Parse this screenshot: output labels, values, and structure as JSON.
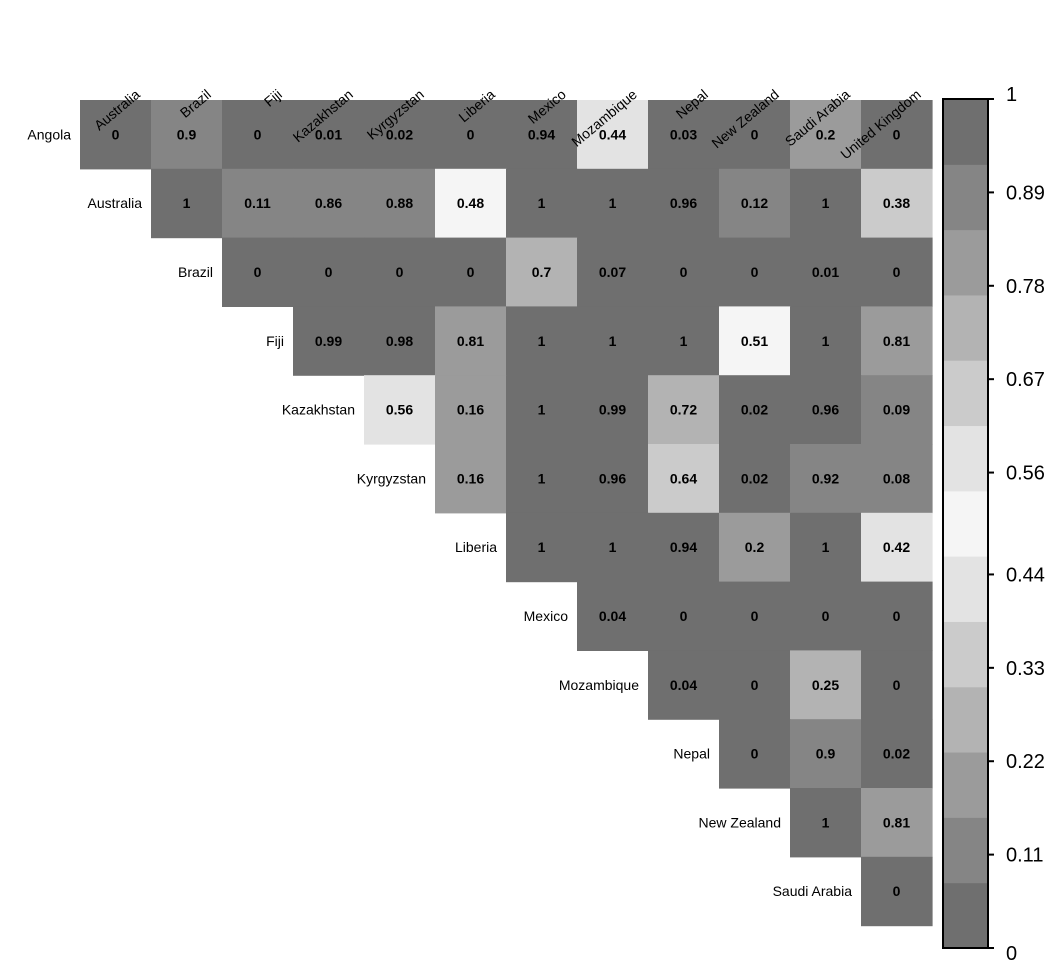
{
  "chart_data": {
    "type": "heatmap",
    "title": "",
    "xlabel": "",
    "ylabel": "",
    "columns": [
      "Australia",
      "Brazil",
      "Fiji",
      "Kazakhstan",
      "Kyrgyzstan",
      "Liberia",
      "Mexico",
      "Mozambique",
      "Nepal",
      "New Zealand",
      "Saudi Arabia",
      "United Kingdom"
    ],
    "rows": [
      "Angola",
      "Australia",
      "Brazil",
      "Fiji",
      "Kazakhstan",
      "Kyrgyzstan",
      "Liberia",
      "Mexico",
      "Mozambique",
      "Nepal",
      "New Zealand",
      "Saudi Arabia"
    ],
    "values": [
      [
        0,
        0.9,
        0,
        0.01,
        0.02,
        0,
        0.94,
        0.44,
        0.03,
        0,
        0.2,
        0
      ],
      [
        null,
        1,
        0.11,
        0.86,
        0.88,
        0.48,
        1,
        1,
        0.96,
        0.12,
        1,
        0.38
      ],
      [
        null,
        null,
        0,
        0,
        0,
        0,
        0.7,
        0.07,
        0,
        0,
        0.01,
        0
      ],
      [
        null,
        null,
        null,
        0.99,
        0.98,
        0.81,
        1,
        1,
        1,
        0.51,
        1,
        0.81
      ],
      [
        null,
        null,
        null,
        null,
        0.56,
        0.16,
        1,
        0.99,
        0.72,
        0.02,
        0.96,
        0.09
      ],
      [
        null,
        null,
        null,
        null,
        null,
        0.16,
        1,
        0.96,
        0.64,
        0.02,
        0.92,
        0.08
      ],
      [
        null,
        null,
        null,
        null,
        null,
        null,
        1,
        1,
        0.94,
        0.2,
        1,
        0.42
      ],
      [
        null,
        null,
        null,
        null,
        null,
        null,
        null,
        0.04,
        0,
        0,
        0,
        0
      ],
      [
        null,
        null,
        null,
        null,
        null,
        null,
        null,
        null,
        0.04,
        0,
        0.25,
        0
      ],
      [
        null,
        null,
        null,
        null,
        null,
        null,
        null,
        null,
        null,
        0,
        0.9,
        0.02
      ],
      [
        null,
        null,
        null,
        null,
        null,
        null,
        null,
        null,
        null,
        null,
        1,
        0.81
      ],
      [
        null,
        null,
        null,
        null,
        null,
        null,
        null,
        null,
        null,
        null,
        null,
        0
      ]
    ],
    "colorbar": {
      "range": [
        0,
        1
      ],
      "ticks": [
        "1",
        "0.89",
        "0.78",
        "0.67",
        "0.56",
        "0.44",
        "0.33",
        "0.22",
        "0.11",
        "0"
      ],
      "tick_values": [
        1,
        0.89,
        0.78,
        0.67,
        0.56,
        0.44,
        0.33,
        0.22,
        0.11,
        0
      ],
      "band_colors": [
        "#6f6f6f",
        "#858585",
        "#9b9b9b",
        "#b3b3b3",
        "#cbcbcb",
        "#e3e3e3",
        "#f5f5f5",
        "#e3e3e3",
        "#cbcbcb",
        "#b3b3b3",
        "#9b9b9b",
        "#858585",
        "#6f6f6f"
      ]
    }
  }
}
